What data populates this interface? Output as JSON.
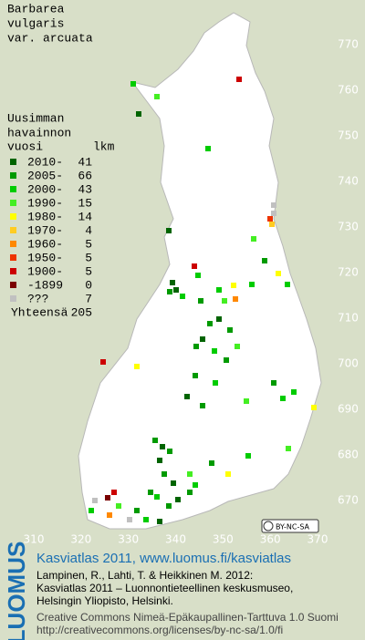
{
  "title": [
    "Barbarea",
    "vulgaris",
    "var. arcuata"
  ],
  "legend": {
    "header": [
      "Uusimman",
      "havainnon"
    ],
    "col_year": "vuosi",
    "col_count": "lkm",
    "rows": [
      {
        "label": "2010-",
        "count": 41,
        "color": "#006400"
      },
      {
        "label": "2005-",
        "count": 66,
        "color": "#009a00"
      },
      {
        "label": "2000-",
        "count": 43,
        "color": "#00cc00"
      },
      {
        "label": "1990-",
        "count": 15,
        "color": "#44ee22"
      },
      {
        "label": "1980-",
        "count": 14,
        "color": "#ffff00"
      },
      {
        "label": "1970-",
        "count": 4,
        "color": "#ffcc22"
      },
      {
        "label": "1960-",
        "count": 5,
        "color": "#ff8800"
      },
      {
        "label": "1950-",
        "count": 5,
        "color": "#ee3300"
      },
      {
        "label": "1900-",
        "count": 5,
        "color": "#cc0000"
      },
      {
        "label": "-1899",
        "count": 0,
        "color": "#7a0000"
      },
      {
        "label": "???",
        "count": 7,
        "color": "#c0c0c0"
      }
    ],
    "total": {
      "label": "Yhteensä",
      "count": 205
    }
  },
  "x_ticks": [
    310,
    320,
    330,
    340,
    350,
    360,
    370
  ],
  "y_ticks": [
    770,
    760,
    750,
    740,
    730,
    720,
    710,
    700,
    690,
    680,
    670
  ],
  "license_badge": "BY-NC-SA",
  "logo": "LUOMUS",
  "footer": {
    "link": "Kasviatlas 2011, www.luomus.fi/kasviatlas",
    "citation": [
      "Lampinen, R., Lahti, T. & Heikkinen M. 2012:",
      "Kasviatlas 2011 – Luonnontieteellinen keskusmuseo,",
      "Helsingin Yliopisto, Helsinki."
    ],
    "license": [
      "Creative Commons Nimeä-Epäkaupallinen-Tarttuva 1.0 Suomi",
      "http://creativecommons.org/licenses/by-nc-sa/1.0/fi"
    ]
  }
}
